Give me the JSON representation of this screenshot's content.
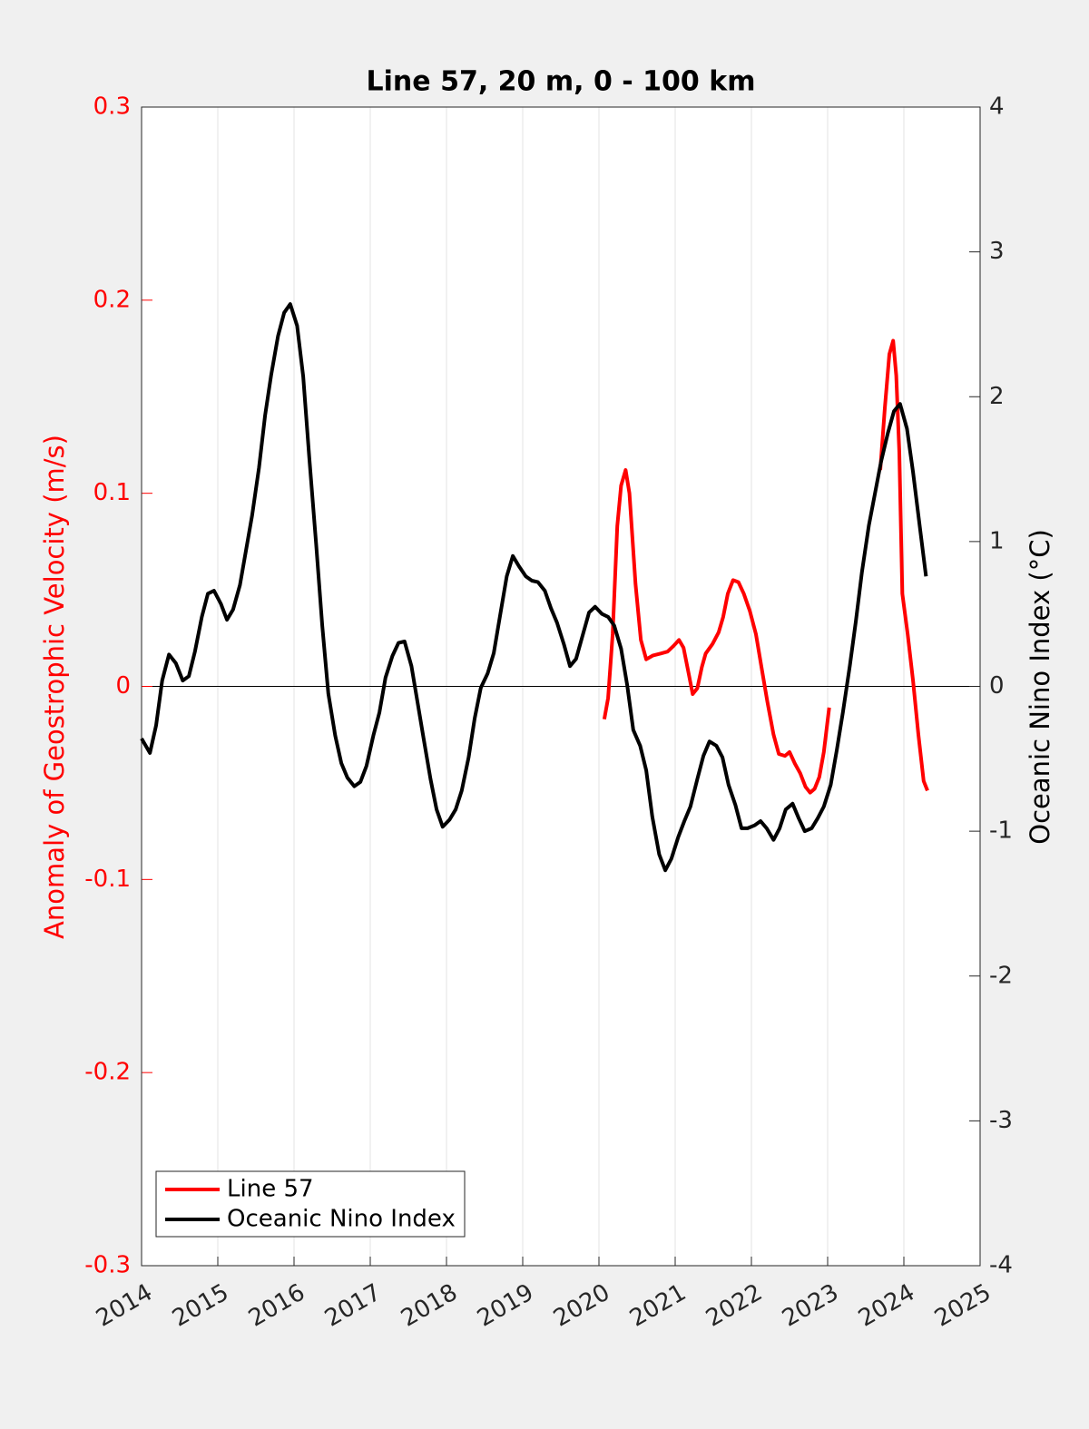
{
  "chart_data": {
    "type": "line",
    "title": "Line 57, 20 m, 0 - 100 km",
    "ylabel": "Anomaly of Geostrophic Velocity (m/s)",
    "y2label": "Oceanic Nino Index (°C)",
    "xlim": [
      2014,
      2025
    ],
    "xticks": [
      2014,
      2015,
      2016,
      2017,
      2018,
      2019,
      2020,
      2021,
      2022,
      2023,
      2024,
      2025
    ],
    "ylim": [
      -0.3,
      0.3
    ],
    "yticks": [
      -0.3,
      -0.2,
      -0.1,
      0,
      0.1,
      0.2,
      0.3
    ],
    "y2lim": [
      -4,
      4
    ],
    "y2ticks": [
      -4,
      -3,
      -2,
      -1,
      0,
      1,
      2,
      3,
      4
    ],
    "grid": "x",
    "legend": "lower left",
    "ylabel_color": "#ff0000",
    "series": [
      {
        "name": "Line 57",
        "color": "#ff0000",
        "x": [
          2020.07,
          2020.12,
          2020.18,
          2020.24,
          2020.29,
          2020.35,
          2020.4,
          2020.48,
          2020.55,
          2020.62,
          2020.71,
          2020.81,
          2020.9,
          2020.98,
          2021.05,
          2021.11,
          2021.17,
          2021.23,
          2021.29,
          2021.35,
          2021.4,
          2021.49,
          2021.57,
          2021.63,
          2021.69,
          2021.76,
          2021.83,
          2021.9,
          2021.98,
          2022.06,
          2022.14,
          2022.21,
          2022.29,
          2022.36,
          2022.44,
          2022.5,
          2022.57,
          2022.64,
          2022.71,
          2022.77,
          2022.83,
          2022.89,
          2022.95,
          2023.02,
          2023.35,
          2023.69,
          2023.75,
          2023.81,
          2023.86,
          2023.9,
          2023.94,
          2023.98,
          2024.05,
          2024.12,
          2024.19,
          2024.26,
          2024.31
        ],
        "values": [
          -0.017,
          -0.006,
          0.027,
          0.083,
          0.104,
          0.112,
          0.1,
          0.053,
          0.024,
          0.014,
          0.016,
          0.017,
          0.018,
          0.021,
          0.024,
          0.02,
          0.008,
          -0.004,
          -0.001,
          0.01,
          0.017,
          0.022,
          0.028,
          0.036,
          0.048,
          0.055,
          0.054,
          0.048,
          0.039,
          0.027,
          0.008,
          -0.008,
          -0.025,
          -0.035,
          -0.036,
          -0.034,
          -0.04,
          -0.045,
          -0.052,
          -0.055,
          -0.053,
          -0.047,
          -0.034,
          -0.011,
          null,
          0.112,
          0.144,
          0.172,
          0.179,
          0.161,
          0.121,
          0.048,
          0.027,
          0.003,
          -0.025,
          -0.049,
          -0.054
        ]
      },
      {
        "name": "Oceanic Nino Index",
        "color": "#000000",
        "axis": "y2",
        "x": [
          2014.0,
          2014.11,
          2014.19,
          2014.27,
          2014.36,
          2014.45,
          2014.54,
          2014.62,
          2014.7,
          2014.79,
          2014.87,
          2014.95,
          2015.04,
          2015.12,
          2015.2,
          2015.29,
          2015.37,
          2015.45,
          2015.54,
          2015.62,
          2015.7,
          2015.79,
          2015.87,
          2015.95,
          2016.04,
          2016.12,
          2016.2,
          2016.29,
          2016.37,
          2016.45,
          2016.54,
          2016.62,
          2016.7,
          2016.79,
          2016.87,
          2016.95,
          2017.04,
          2017.12,
          2017.2,
          2017.29,
          2017.37,
          2017.45,
          2017.54,
          2017.62,
          2017.7,
          2017.79,
          2017.87,
          2017.95,
          2018.04,
          2018.12,
          2018.2,
          2018.29,
          2018.37,
          2018.45,
          2018.54,
          2018.62,
          2018.7,
          2018.79,
          2018.87,
          2018.95,
          2019.04,
          2019.12,
          2019.2,
          2019.29,
          2019.37,
          2019.45,
          2019.54,
          2019.62,
          2019.7,
          2019.79,
          2019.87,
          2019.95,
          2020.04,
          2020.12,
          2020.2,
          2020.29,
          2020.37,
          2020.45,
          2020.54,
          2020.62,
          2020.7,
          2020.79,
          2020.87,
          2020.95,
          2021.04,
          2021.12,
          2021.2,
          2021.29,
          2021.37,
          2021.45,
          2021.54,
          2021.62,
          2021.7,
          2021.79,
          2021.87,
          2021.95,
          2022.04,
          2022.12,
          2022.2,
          2022.29,
          2022.37,
          2022.45,
          2022.54,
          2022.62,
          2022.7,
          2022.79,
          2022.87,
          2022.95,
          2023.04,
          2023.12,
          2023.2,
          2023.29,
          2023.37,
          2023.45,
          2023.54,
          2023.62,
          2023.7,
          2023.79,
          2023.87,
          2023.95,
          2024.04,
          2024.12,
          2024.2,
          2024.29
        ],
        "values": [
          -0.36,
          -0.46,
          -0.27,
          0.04,
          0.22,
          0.16,
          0.04,
          0.07,
          0.24,
          0.48,
          0.64,
          0.66,
          0.57,
          0.46,
          0.53,
          0.7,
          0.94,
          1.18,
          1.51,
          1.87,
          2.15,
          2.42,
          2.58,
          2.64,
          2.49,
          2.14,
          1.58,
          0.98,
          0.42,
          -0.05,
          -0.34,
          -0.53,
          -0.63,
          -0.69,
          -0.66,
          -0.55,
          -0.34,
          -0.18,
          0.06,
          0.21,
          0.3,
          0.31,
          0.14,
          -0.11,
          -0.36,
          -0.64,
          -0.85,
          -0.97,
          -0.92,
          -0.85,
          -0.72,
          -0.49,
          -0.22,
          -0.01,
          0.09,
          0.23,
          0.48,
          0.76,
          0.9,
          0.83,
          0.76,
          0.73,
          0.72,
          0.66,
          0.54,
          0.44,
          0.29,
          0.14,
          0.19,
          0.36,
          0.51,
          0.55,
          0.5,
          0.48,
          0.42,
          0.26,
          0.01,
          -0.3,
          -0.41,
          -0.58,
          -0.9,
          -1.16,
          -1.27,
          -1.19,
          -1.04,
          -0.93,
          -0.83,
          -0.64,
          -0.48,
          -0.38,
          -0.41,
          -0.49,
          -0.68,
          -0.82,
          -0.98,
          -0.98,
          -0.96,
          -0.93,
          -0.98,
          -1.06,
          -0.98,
          -0.85,
          -0.81,
          -0.91,
          -1.0,
          -0.98,
          -0.91,
          -0.83,
          -0.68,
          -0.44,
          -0.18,
          0.14,
          0.45,
          0.79,
          1.11,
          1.33,
          1.55,
          1.75,
          1.9,
          1.95,
          1.78,
          1.48,
          1.14,
          0.76
        ]
      }
    ]
  }
}
